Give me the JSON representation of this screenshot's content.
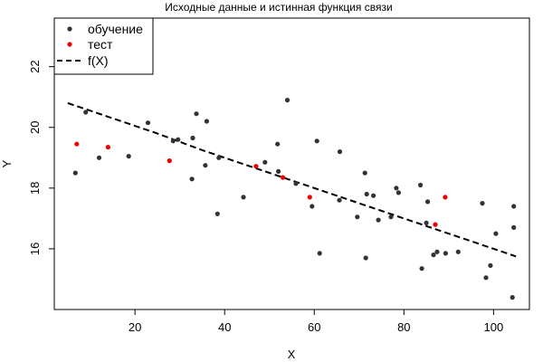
{
  "chart_data": {
    "type": "scatter",
    "title": "Исходные данные и истинная функция связи",
    "xlabel": "X",
    "ylabel": "Y",
    "xlim": [
      2,
      108
    ],
    "ylim": [
      14.0,
      23.6
    ],
    "xticks": [
      20,
      40,
      60,
      80,
      100
    ],
    "yticks": [
      16,
      18,
      20,
      22
    ],
    "legend": {
      "position": "top-left",
      "entries": [
        "обучение",
        "тест",
        "f(X)"
      ]
    },
    "series": [
      {
        "name": "обучение",
        "kind": "points",
        "color": "#333333",
        "x": [
          6.7,
          9,
          12,
          18.6,
          22.9,
          28.5,
          29.6,
          32.7,
          32.9,
          33.7,
          35.7,
          36,
          38.4,
          38.7,
          44.2,
          49,
          51.8,
          52,
          54,
          55.9,
          59.5,
          60.6,
          61.2,
          65.6,
          65.7,
          69.6,
          71.3,
          71.5,
          71.7,
          73.2,
          74.3,
          77.1,
          78.3,
          78.8,
          83.7,
          84,
          85,
          85.3,
          86.6,
          87.4,
          89.3,
          92.1,
          97.5,
          98.3,
          99.3,
          100.5,
          104.2,
          104.5,
          104.5
        ],
        "y": [
          18.5,
          20.5,
          19.0,
          19.05,
          20.15,
          19.55,
          19.6,
          18.3,
          19.65,
          20.45,
          18.75,
          20.2,
          17.15,
          19.0,
          17.7,
          18.85,
          19.45,
          18.55,
          20.9,
          18.15,
          17.4,
          19.55,
          15.85,
          17.6,
          19.2,
          17.05,
          18.5,
          15.7,
          17.8,
          17.75,
          16.95,
          17.05,
          18.0,
          17.85,
          18.1,
          15.35,
          16.85,
          17.55,
          15.8,
          15.9,
          15.85,
          15.9,
          17.5,
          15.05,
          15.45,
          16.5,
          14.4,
          17.4,
          16.7
        ]
      },
      {
        "name": "тест",
        "kind": "points",
        "color": "#ee0000",
        "x": [
          7,
          14,
          27.7,
          47,
          53,
          59,
          87,
          89.2
        ],
        "y": [
          19.45,
          19.35,
          18.9,
          18.72,
          18.35,
          17.7,
          16.8,
          17.7
        ]
      },
      {
        "name": "f(X)",
        "kind": "line",
        "style": "dashed",
        "color": "#000000",
        "x": [
          5,
          15,
          25,
          35,
          45,
          55,
          65,
          75,
          85,
          95,
          105
        ],
        "y": [
          20.8,
          20.3,
          19.8,
          19.25,
          18.75,
          18.25,
          17.75,
          17.25,
          16.75,
          16.25,
          15.75
        ]
      }
    ]
  }
}
